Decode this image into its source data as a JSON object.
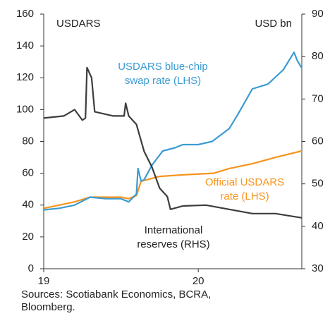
{
  "chart_data": {
    "type": "line",
    "annotations": {
      "left_unit": "USDARS",
      "right_unit": "USD bn",
      "blue_label": [
        "USDARS blue-chip",
        "swap rate (LHS)"
      ],
      "orange_label": [
        "Official USDARS",
        "rate (LHS)"
      ],
      "black_label": [
        "International",
        "reserves (RHS)"
      ],
      "source": [
        "Sources: Scotiabank Economics, BCRA,",
        "Bloomberg."
      ]
    },
    "xlim": [
      2019,
      2020.67
    ],
    "xticks": [
      {
        "value": 2019,
        "label": "19"
      },
      {
        "value": 2020,
        "label": "20"
      }
    ],
    "ylim": [
      0,
      160
    ],
    "yticks": [
      0,
      20,
      40,
      60,
      80,
      100,
      120,
      140,
      160
    ],
    "y2lim": [
      30,
      90
    ],
    "y2ticks": [
      30,
      40,
      50,
      60,
      70,
      80,
      90
    ],
    "series": [
      {
        "name": "Official USDARS rate (LHS)",
        "color": "#f7941d",
        "x": [
          2019,
          2019.1,
          2019.2,
          2019.3,
          2019.4,
          2019.5,
          2019.55,
          2019.6,
          2019.63,
          2019.75,
          2019.9,
          2020.1,
          2020.2,
          2020.35,
          2020.5,
          2020.67
        ],
        "values": [
          38,
          40,
          42,
          45,
          45,
          45,
          44,
          46,
          55,
          58,
          59,
          60,
          63,
          66,
          70,
          74
        ]
      },
      {
        "name": "USDARS blue-chip swap rate (LHS)",
        "color": "#3c9bd2",
        "x": [
          2019,
          2019.1,
          2019.2,
          2019.3,
          2019.4,
          2019.5,
          2019.55,
          2019.6,
          2019.61,
          2019.63,
          2019.65,
          2019.7,
          2019.77,
          2019.85,
          2019.9,
          2020.0,
          2020.09,
          2020.2,
          2020.25,
          2020.35,
          2020.45,
          2020.55,
          2020.62,
          2020.64,
          2020.67
        ],
        "values": [
          37,
          38,
          40,
          45,
          44,
          44,
          42,
          47,
          63,
          55,
          56,
          65,
          74,
          76,
          78,
          78,
          80,
          88,
          96,
          113,
          116,
          125,
          136,
          131,
          126
        ]
      },
      {
        "name": "International reserves (RHS)",
        "color": "#3d3d3d",
        "axis": "y2",
        "x": [
          2019,
          2019.13,
          2019.2,
          2019.25,
          2019.27,
          2019.28,
          2019.31,
          2019.33,
          2019.45,
          2019.52,
          2019.53,
          2019.55,
          2019.6,
          2019.65,
          2019.7,
          2019.75,
          2019.8,
          2019.82,
          2019.9,
          2020.05,
          2020.2,
          2020.35,
          2020.5,
          2020.67
        ],
        "values": [
          65.5,
          66,
          67.5,
          65,
          65.5,
          77.4,
          75,
          67,
          66,
          66,
          69,
          66,
          64,
          57.6,
          54,
          49,
          47,
          44,
          44.8,
          45,
          44,
          43,
          43,
          42
        ]
      }
    ]
  }
}
